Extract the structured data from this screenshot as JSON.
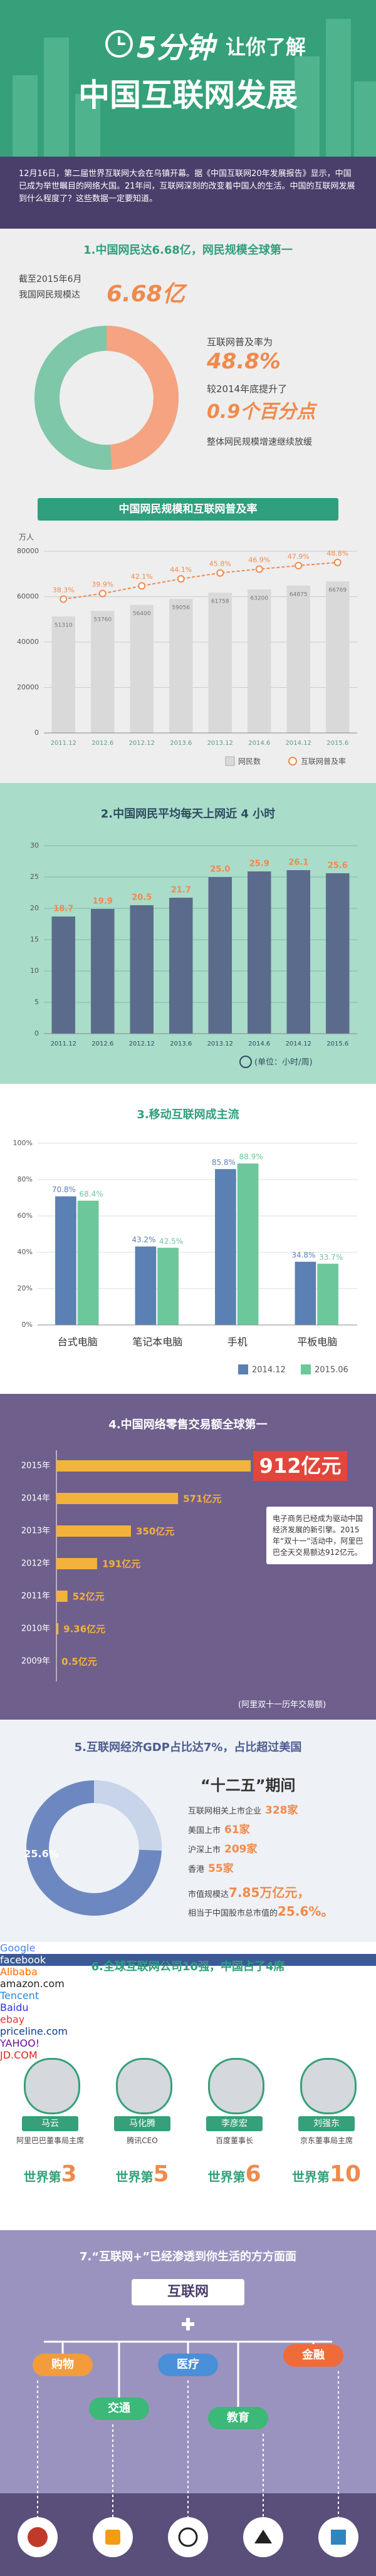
{
  "header": {
    "title_1": "5分钟",
    "title_2": "让你了解",
    "title_3": "中国互联网发展"
  },
  "intro": {
    "text": "12月16日，第二届世界互联网大会在乌镇开幕。据《中国互联网20年发展报告》显示，中国已成为举世瞩目的网络大国。21年间，互联网深刻的改变着中国人的生活。中国的互联网发展到什么程度了？这些数据一定要知道。"
  },
  "sections": [
    {
      "heading": "1.中国网民达6.68亿，网民规模全球第一",
      "as_of": "截至2015年6月",
      "scale_label": "我国网民规模达",
      "scale": "6.68亿",
      "rate_label": "互联网普及率为",
      "rise_label": "较2014年底提升了",
      "rise": "0.9个百分点",
      "note": "整体网民规模增速继续放缓"
    },
    {
      "heading": "2.中国网民平均每天上网近 4 小时"
    },
    {
      "heading": "3.移动互联网成主流"
    },
    {
      "heading": "4.中国网络零售交易额全球第一",
      "side_text": "电子商务已经成为驱动中国经济发展的新引擎。2015年“双十一”活动中，阿里巴巴全天交易额达912亿元。",
      "caption": "(阿里双十一历年交易额)"
    },
    {
      "heading": "5.互联网经济GDP占比达7%，占比超过美国",
      "period": "“十二五”期间",
      "items": [
        {
          "label": "互联网相关上市企业",
          "value": "328家"
        },
        {
          "label": "美国上市",
          "value": "61家"
        },
        {
          "label": "沪深上市",
          "value": "209家"
        },
        {
          "label": "香港",
          "value": "55家"
        }
      ],
      "market_label": "市值规模达",
      "market_value": "7.85万亿元，",
      "market_line2": "相当于中国股市总市值的",
      "market_share": "25.6%。"
    },
    {
      "heading": "6.全球互联网公司10强，中国占了4席",
      "logos": [
        "Google",
        "facebook",
        "Alibaba",
        "amazon.com",
        "Tencent",
        "Baidu",
        "ebay",
        "priceline.com",
        "YAHOO!",
        "JD.COM"
      ],
      "people": [
        {
          "name": "马云",
          "title": "阿里巴巴董事局主席",
          "rank_label": "世界第",
          "rank": "3"
        },
        {
          "name": "马化腾",
          "title": "腾讯CEO",
          "rank_label": "世界第",
          "rank": "5"
        },
        {
          "name": "李彦宏",
          "title": "百度董事长",
          "rank_label": "世界第",
          "rank": "6"
        },
        {
          "name": "刘强东",
          "title": "京东董事局主席",
          "rank_label": "世界第",
          "rank": "10"
        }
      ]
    },
    {
      "heading": "7.“互联网+”已经渗透到你生活的方方面面",
      "hub": "互联网",
      "tags": [
        "购物",
        "医疗",
        "金融",
        "交通",
        "教育"
      ]
    }
  ],
  "chart_data": [
    {
      "type": "bar",
      "title": "中国网民规模和互联网普及率",
      "y_label": "万人",
      "categories": [
        "2011.12",
        "2012.6",
        "2012.12",
        "2013.6",
        "2013.12",
        "2014.6",
        "2014.12",
        "2015.6"
      ],
      "series": [
        {
          "name": "网民数",
          "color": "#d9d9d9",
          "values": [
            51310,
            53760,
            56400,
            59056,
            61758,
            63200,
            64875,
            66769
          ]
        },
        {
          "name": "互联网普及率",
          "color": "#f08a4b",
          "axis": "y2",
          "type": "line",
          "values": [
            38.3,
            39.9,
            42.1,
            44.1,
            45.8,
            46.9,
            47.9,
            48.8
          ],
          "value_labels": [
            "38.3%",
            "39.9%",
            "42.1%",
            "44.1%",
            "45.8%",
            "46.9%",
            "47.9%",
            "48.8%"
          ]
        }
      ],
      "ylim": [
        0,
        80000
      ],
      "yticks": [
        0,
        20000,
        40000,
        60000,
        80000
      ],
      "y2lim": [
        0,
        52
      ],
      "grid": true
    },
    {
      "type": "bar",
      "unit_label": "(单位：小时/周)",
      "color": "#5b6b8c",
      "categories": [
        "2011.12",
        "2012.6",
        "2012.12",
        "2013.6",
        "2013.12",
        "2014.6",
        "2014.12",
        "2015.6"
      ],
      "values": [
        18.7,
        19.9,
        20.5,
        21.7,
        25.0,
        25.9,
        26.1,
        25.6
      ],
      "value_labels": [
        "18.7",
        "19.9",
        "20.5",
        "21.7",
        "25.0",
        "25.9",
        "26.1",
        "25.6"
      ],
      "ylim": [
        0,
        30
      ],
      "yticks": [
        0,
        5,
        10,
        15,
        20,
        25,
        30
      ],
      "grid": true
    },
    {
      "type": "grouped_bar",
      "categories": [
        "台式电脑",
        "笔记本电脑",
        "手机",
        "平板电脑"
      ],
      "series": [
        {
          "name": "2014.12",
          "color": "#5b80b4",
          "values": [
            70.8,
            43.2,
            85.8,
            34.8
          ],
          "value_labels": [
            "70.8%",
            "43.2%",
            "85.8%",
            "34.8%"
          ]
        },
        {
          "name": "2015.06",
          "color": "#6cc79b",
          "values": [
            68.4,
            42.5,
            88.9,
            33.7
          ],
          "value_labels": [
            "68.4%",
            "42.5%",
            "88.9%",
            "33.7%"
          ]
        }
      ],
      "ylim": [
        0,
        100
      ],
      "yticks": [
        {
          "value": 0,
          "label": "0%"
        },
        {
          "value": 20,
          "label": "20%"
        },
        {
          "value": 40,
          "label": "40%"
        },
        {
          "value": 60,
          "label": "60%"
        },
        {
          "value": 80,
          "label": "80%"
        },
        {
          "value": 100,
          "label": "100%"
        }
      ],
      "grid": true
    },
    {
      "type": "hbar",
      "color": "#f3b23c",
      "categories": [
        "2015年",
        "2014年",
        "2013年",
        "2012年",
        "2011年",
        "2010年",
        "2009年"
      ],
      "values": [
        912,
        571,
        350,
        191,
        52,
        9.36,
        0.5
      ],
      "value_labels": [
        "912亿元",
        "571亿元",
        "350亿元",
        "191亿元",
        "52亿元",
        "9.36亿元",
        "0.5亿元"
      ],
      "xlim": [
        0,
        1000
      ]
    },
    {
      "type": "pie",
      "values": [
        48.8
      ],
      "value_labels": [
        "48.8%"
      ],
      "color": "#f5a380",
      "rest_color": "#7ec7a8"
    },
    {
      "type": "pie",
      "values": [
        25.6
      ],
      "value_labels": [
        "25.6%"
      ],
      "color": "#c7d4ea",
      "rest_color": "#6d88c0"
    }
  ]
}
